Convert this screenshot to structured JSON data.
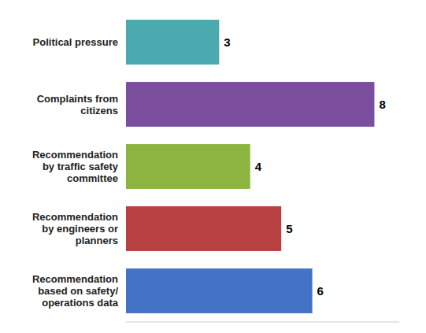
{
  "chart_data": {
    "type": "bar",
    "orientation": "horizontal",
    "categories": [
      "Political pressure",
      "Complaints from\ncitizens",
      "Recommendation\nby traffic safety\ncommittee",
      "Recommendation\nby engineers or\nplanners",
      "Recommendation\nbased on safety/\noperations data"
    ],
    "values": [
      3,
      8,
      4,
      5,
      6
    ],
    "colors": [
      "#4BAAB0",
      "#7B4F9E",
      "#8DB441",
      "#B94040",
      "#4472C4"
    ],
    "xlim": [
      0,
      8.8
    ],
    "data_labels": true,
    "tick_labels": "y"
  }
}
